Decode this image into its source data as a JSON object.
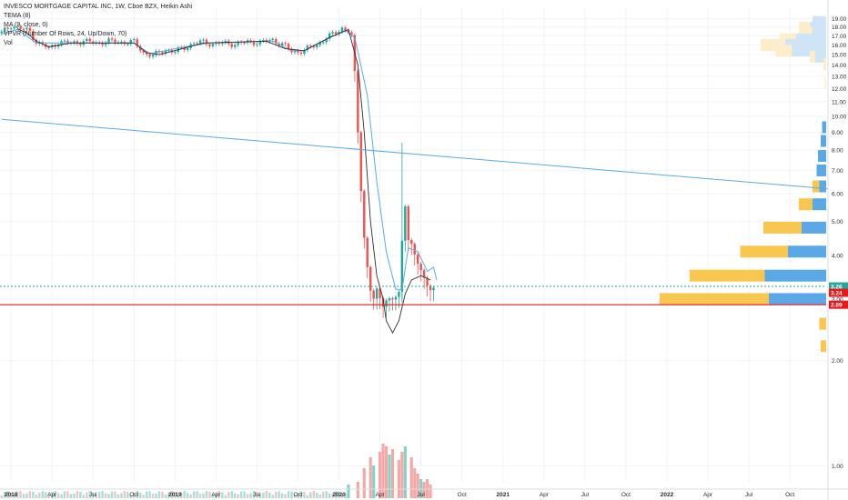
{
  "legend": {
    "title": "INVESCO MORTGAGE CAPITAL INC, 1W, Cboe BZX, Heikin Ashi",
    "tema": "TEMA (8)",
    "ma": "MA (9, close, 0)",
    "vpvr": "VPVR (Number Of Rows, 24, Up/Down, 70)",
    "vol": "Vol"
  },
  "colors": {
    "up": "#26a69a",
    "down": "#ef5350",
    "up_volume": "#7fd4c8",
    "down_volume": "#f4a7a5",
    "tema_line": "#5aa9e6",
    "ma_line": "#2d2d2d",
    "trend_line": "#5aa9e6",
    "dotted_line": "#26a69a",
    "red_line": "#e8171c",
    "vpvr_up": "#5aa9e6",
    "vpvr_up_light": "#cfe4f6",
    "vpvr_down": "#f9c74f",
    "vpvr_down_light": "#fdeec9",
    "tag_green": "#26a69a",
    "tag_red": "#e8171c",
    "grid": "#f0f3f7",
    "axis_text": "#2a2a2a"
  },
  "chart_data": {
    "type": "candlestick",
    "price_scale": "log",
    "ylim": [
      0.9,
      20.5
    ],
    "y_ticks": [
      "19.00",
      "18.00",
      "17.00",
      "16.00",
      "15.00",
      "14.00",
      "13.00",
      "12.00",
      "11.00",
      "10.00",
      "9.00",
      "8.00",
      "7.00",
      "6.00",
      "5.00",
      "4.00",
      "3.00",
      "2.00",
      "1.00"
    ],
    "y_tick_values": [
      19,
      18,
      17,
      16,
      15,
      14,
      13,
      12,
      11,
      10,
      9,
      8,
      7,
      6,
      5,
      4,
      3,
      2,
      1
    ],
    "x_ticks": [
      "2018",
      "Apr",
      "Jul",
      "Oct",
      "2019",
      "Apr",
      "Jul",
      "Oct",
      "2020",
      "Apr",
      "Jul",
      "Oct",
      "2021",
      "Apr",
      "Jul",
      "Oct",
      "2022",
      "Apr",
      "Jul",
      "Oct"
    ],
    "x_tick_index": [
      3,
      16,
      29,
      42,
      55,
      68,
      81,
      94,
      107,
      120,
      133,
      146,
      159,
      172,
      185,
      198,
      211,
      224,
      237,
      250
    ],
    "candle_anchors": [
      {
        "i": 0,
        "v": 17.3
      },
      {
        "i": 3,
        "v": 18.2
      },
      {
        "i": 5,
        "v": 17.9
      },
      {
        "i": 7,
        "v": 17.7
      },
      {
        "i": 9,
        "v": 17.5
      },
      {
        "i": 11,
        "v": 16.3
      },
      {
        "i": 13,
        "v": 16.0
      },
      {
        "i": 15,
        "v": 15.6
      },
      {
        "i": 18,
        "v": 16.3
      },
      {
        "i": 22,
        "v": 16.2
      },
      {
        "i": 26,
        "v": 16.4
      },
      {
        "i": 30,
        "v": 16.2
      },
      {
        "i": 34,
        "v": 16.4
      },
      {
        "i": 38,
        "v": 16.3
      },
      {
        "i": 42,
        "v": 16.3
      },
      {
        "i": 45,
        "v": 15.2
      },
      {
        "i": 48,
        "v": 14.9
      },
      {
        "i": 52,
        "v": 15.5
      },
      {
        "i": 55,
        "v": 15.3
      },
      {
        "i": 58,
        "v": 15.7
      },
      {
        "i": 61,
        "v": 16.2
      },
      {
        "i": 64,
        "v": 16.3
      },
      {
        "i": 67,
        "v": 16.1
      },
      {
        "i": 70,
        "v": 16.2
      },
      {
        "i": 74,
        "v": 16.1
      },
      {
        "i": 78,
        "v": 16.3
      },
      {
        "i": 82,
        "v": 16.3
      },
      {
        "i": 86,
        "v": 16.5
      },
      {
        "i": 89,
        "v": 16.1
      },
      {
        "i": 92,
        "v": 15.3
      },
      {
        "i": 94,
        "v": 15.3
      },
      {
        "i": 97,
        "v": 15.6
      },
      {
        "i": 100,
        "v": 16.0
      },
      {
        "i": 103,
        "v": 16.8
      },
      {
        "i": 106,
        "v": 17.3
      },
      {
        "i": 108,
        "v": 17.9
      },
      {
        "i": 110,
        "v": 17.6
      },
      {
        "i": 111,
        "v": 16.9
      },
      {
        "i": 112,
        "v": 13.2
      },
      {
        "i": 113,
        "v": 9.0
      },
      {
        "i": 114,
        "v": 6.2
      },
      {
        "i": 115,
        "v": 4.5
      },
      {
        "i": 116,
        "v": 3.7
      },
      {
        "i": 117,
        "v": 3.2
      },
      {
        "i": 118,
        "v": 3.0
      },
      {
        "i": 119,
        "v": 3.15
      },
      {
        "i": 120,
        "v": 3.0
      },
      {
        "i": 121,
        "v": 2.9
      },
      {
        "i": 122,
        "v": 3.0
      },
      {
        "i": 124,
        "v": 3.0
      },
      {
        "i": 126,
        "v": 3.1
      },
      {
        "i": 128,
        "v": 5.6
      },
      {
        "i": 129,
        "v": 4.5
      },
      {
        "i": 130,
        "v": 4.3
      },
      {
        "i": 131,
        "v": 4.0
      },
      {
        "i": 132,
        "v": 3.8
      },
      {
        "i": 133,
        "v": 3.6
      },
      {
        "i": 134,
        "v": 3.4
      },
      {
        "i": 135,
        "v": 3.3
      },
      {
        "i": 136,
        "v": 3.25
      },
      {
        "i": 137,
        "v": 3.24
      }
    ],
    "tema": [
      {
        "i": 0,
        "v": 17.2
      },
      {
        "i": 5,
        "v": 17.7
      },
      {
        "i": 11,
        "v": 16.2
      },
      {
        "i": 18,
        "v": 16.2
      },
      {
        "i": 30,
        "v": 16.2
      },
      {
        "i": 42,
        "v": 16.2
      },
      {
        "i": 47,
        "v": 15.1
      },
      {
        "i": 52,
        "v": 15.4
      },
      {
        "i": 58,
        "v": 15.8
      },
      {
        "i": 66,
        "v": 16.2
      },
      {
        "i": 78,
        "v": 16.3
      },
      {
        "i": 86,
        "v": 16.4
      },
      {
        "i": 92,
        "v": 15.4
      },
      {
        "i": 96,
        "v": 15.4
      },
      {
        "i": 103,
        "v": 16.6
      },
      {
        "i": 109,
        "v": 17.6
      },
      {
        "i": 112,
        "v": 16.8
      },
      {
        "i": 116,
        "v": 11.5
      },
      {
        "i": 119,
        "v": 6.5
      },
      {
        "i": 122,
        "v": 4.1
      },
      {
        "i": 125,
        "v": 3.2
      },
      {
        "i": 127,
        "v": 3.2
      },
      {
        "i": 129,
        "v": 4.2
      },
      {
        "i": 132,
        "v": 4.1
      },
      {
        "i": 135,
        "v": 3.6
      },
      {
        "i": 137,
        "v": 3.7
      },
      {
        "i": 138,
        "v": 3.4
      }
    ],
    "ma": [
      {
        "i": 5,
        "v": 17.8
      },
      {
        "i": 8,
        "v": 17.3
      },
      {
        "i": 11,
        "v": 16.4
      },
      {
        "i": 15,
        "v": 15.8
      },
      {
        "i": 22,
        "v": 16.2
      },
      {
        "i": 42,
        "v": 16.2
      },
      {
        "i": 46,
        "v": 15.2
      },
      {
        "i": 50,
        "v": 15.0
      },
      {
        "i": 56,
        "v": 15.5
      },
      {
        "i": 64,
        "v": 16.2
      },
      {
        "i": 84,
        "v": 16.4
      },
      {
        "i": 90,
        "v": 15.6
      },
      {
        "i": 96,
        "v": 15.4
      },
      {
        "i": 104,
        "v": 16.8
      },
      {
        "i": 110,
        "v": 17.7
      },
      {
        "i": 113,
        "v": 14.0
      },
      {
        "i": 115,
        "v": 9.0
      },
      {
        "i": 117,
        "v": 5.0
      },
      {
        "i": 119,
        "v": 3.5
      },
      {
        "i": 121,
        "v": 3.0
      },
      {
        "i": 122,
        "v": 2.6
      },
      {
        "i": 124,
        "v": 2.4
      },
      {
        "i": 126,
        "v": 2.6
      },
      {
        "i": 128,
        "v": 3.1
      },
      {
        "i": 130,
        "v": 3.4
      },
      {
        "i": 133,
        "v": 3.5
      },
      {
        "i": 136,
        "v": 3.4
      }
    ],
    "trend_line": {
      "from": {
        "i": 0,
        "v": 9.8
      },
      "to": {
        "i": 262,
        "v": 6.2
      }
    },
    "dotted_level": 3.26,
    "red_level": 2.89,
    "price_tags": [
      {
        "label": "3.26",
        "value": 3.26,
        "color": "green"
      },
      {
        "label": "3.24",
        "value": 3.24,
        "color": "red"
      },
      {
        "label": "2.89",
        "value": 2.89,
        "color": "red"
      }
    ],
    "volume": [
      {
        "i": 110,
        "v": 0.25
      },
      {
        "i": 113,
        "v": 0.3
      },
      {
        "i": 115,
        "v": 0.55
      },
      {
        "i": 117,
        "v": 0.75
      },
      {
        "i": 118,
        "v": 0.6
      },
      {
        "i": 120,
        "v": 0.85
      },
      {
        "i": 121,
        "v": 1.0
      },
      {
        "i": 122,
        "v": 0.95
      },
      {
        "i": 123,
        "v": 0.8
      },
      {
        "i": 124,
        "v": 0.9
      },
      {
        "i": 126,
        "v": 0.7
      },
      {
        "i": 127,
        "v": 0.85
      },
      {
        "i": 128,
        "v": 0.95
      },
      {
        "i": 130,
        "v": 0.75
      },
      {
        "i": 131,
        "v": 0.55
      },
      {
        "i": 132,
        "v": 0.45
      },
      {
        "i": 133,
        "v": 0.35
      },
      {
        "i": 134,
        "v": 0.3
      },
      {
        "i": 135,
        "v": 0.35
      },
      {
        "i": 136,
        "v": 0.25
      }
    ],
    "vpvr": [
      {
        "price": 18.6,
        "up": 0.1,
        "down": 0.0
      },
      {
        "price": 17.9,
        "up": 0.12,
        "down": 0.08
      },
      {
        "price": 17.3,
        "up": 0.1,
        "down": 0.05
      },
      {
        "price": 16.6,
        "up": 0.22,
        "down": 0.12
      },
      {
        "price": 16.0,
        "up": 0.3,
        "down": 0.18
      },
      {
        "price": 15.4,
        "up": 0.25,
        "down": 0.12
      },
      {
        "price": 14.8,
        "up": 0.08,
        "down": 0.04
      },
      {
        "price": 14.1,
        "up": 0.0,
        "down": 0.02
      },
      {
        "price": 12.5,
        "up": 0.0,
        "down": 0.01
      },
      {
        "price": 9.3,
        "up": 0.03,
        "down": 0.0
      },
      {
        "price": 8.5,
        "up": 0.04,
        "down": 0.0
      },
      {
        "price": 7.7,
        "up": 0.06,
        "down": 0.0
      },
      {
        "price": 7.0,
        "up": 0.07,
        "down": 0.0
      },
      {
        "price": 6.3,
        "up": 0.05,
        "down": 0.05
      },
      {
        "price": 5.6,
        "up": 0.1,
        "down": 0.1
      },
      {
        "price": 4.8,
        "up": 0.18,
        "down": 0.28
      },
      {
        "price": 4.1,
        "up": 0.28,
        "down": 0.35
      },
      {
        "price": 3.5,
        "up": 0.45,
        "down": 0.55
      },
      {
        "price": 3.0,
        "up": 0.42,
        "down": 0.8
      },
      {
        "price": 2.55,
        "up": 0.0,
        "down": 0.05
      },
      {
        "price": 2.2,
        "up": 0.0,
        "down": 0.04
      }
    ]
  }
}
